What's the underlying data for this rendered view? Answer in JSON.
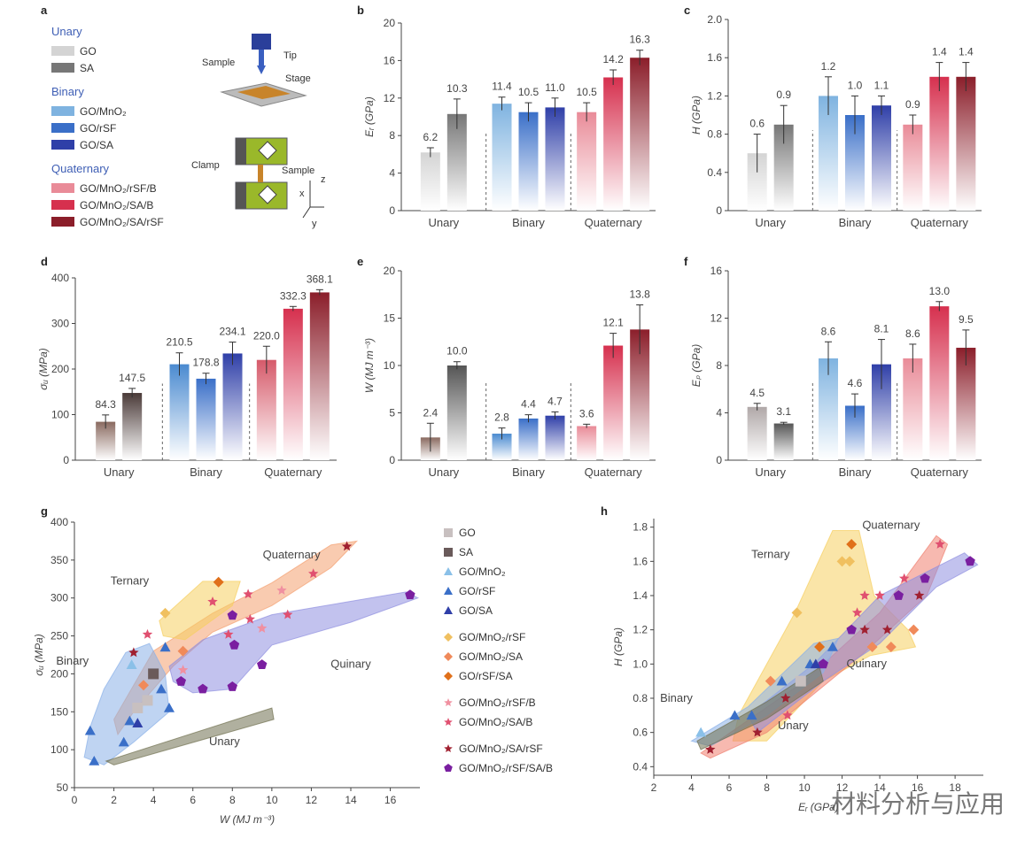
{
  "panel_labels": [
    "a",
    "b",
    "c",
    "d",
    "e",
    "f",
    "g",
    "h"
  ],
  "legend_a": {
    "groups": [
      {
        "heading": "Unary",
        "items": [
          {
            "label": "GO",
            "color": "#d4d4d4"
          },
          {
            "label": "SA",
            "color": "#777777"
          }
        ]
      },
      {
        "heading": "Binary",
        "items": [
          {
            "label": "GO/MnO₂",
            "color": "#7fb3e0"
          },
          {
            "label": "GO/rSF",
            "color": "#3a6fc8"
          },
          {
            "label": "GO/SA",
            "color": "#2f3fa8"
          }
        ]
      },
      {
        "heading": "Quaternary",
        "items": [
          {
            "label": "GO/MnO₂/rSF/B",
            "color": "#e98b98"
          },
          {
            "label": "GO/MnO₂/SA/B",
            "color": "#d6304e"
          },
          {
            "label": "GO/MnO₂/SA/rSF",
            "color": "#8b1e2a"
          }
        ]
      }
    ]
  },
  "schematic": {
    "tip": "Tip",
    "sample": "Sample",
    "stage": "Stage",
    "clamp": "Clamp",
    "sample2": "Sample",
    "axes": [
      "x",
      "y",
      "z"
    ]
  },
  "chart_data": [
    {
      "id": "b",
      "type": "bar",
      "ylabel": "Eᵣ (GPa)",
      "ylim": [
        0,
        20
      ],
      "yticks": [
        0,
        4,
        8,
        12,
        16,
        20
      ],
      "groups": [
        "Unary",
        "Binary",
        "Quaternary"
      ],
      "bars": [
        {
          "g": 0,
          "v": 6.2,
          "e": 0.5,
          "c": "#d4d4d4"
        },
        {
          "g": 0,
          "v": 10.3,
          "e": 1.6,
          "c": "#777777"
        },
        {
          "g": 1,
          "v": 11.4,
          "e": 0.7,
          "c": "#7fb3e0"
        },
        {
          "g": 1,
          "v": 10.5,
          "e": 1.0,
          "c": "#3a6fc8"
        },
        {
          "g": 1,
          "v": 11.0,
          "e": 1.0,
          "c": "#2f3fa8"
        },
        {
          "g": 2,
          "v": 10.5,
          "e": 1.0,
          "c": "#e98b98"
        },
        {
          "g": 2,
          "v": 14.2,
          "e": 0.8,
          "c": "#d6304e"
        },
        {
          "g": 2,
          "v": 16.3,
          "e": 0.8,
          "c": "#8b1e2a"
        }
      ],
      "labels": [
        "6.2",
        "10.3",
        "11.4",
        "10.5",
        "11.0",
        "10.5",
        "14.2",
        "16.3"
      ]
    },
    {
      "id": "c",
      "type": "bar",
      "ylabel": "H (GPa)",
      "ylim": [
        0,
        2.0
      ],
      "yticks": [
        0,
        0.4,
        0.8,
        1.2,
        1.6,
        2.0
      ],
      "ytick_labels": [
        "0",
        "0.4",
        "0.8",
        "1.2",
        "1.6",
        "2.0"
      ],
      "groups": [
        "Unary",
        "Binary",
        "Quaternary"
      ],
      "bars": [
        {
          "g": 0,
          "v": 0.6,
          "e": 0.2,
          "c": "#d4d4d4"
        },
        {
          "g": 0,
          "v": 0.9,
          "e": 0.2,
          "c": "#777777"
        },
        {
          "g": 1,
          "v": 1.2,
          "e": 0.2,
          "c": "#7fb3e0"
        },
        {
          "g": 1,
          "v": 1.0,
          "e": 0.2,
          "c": "#3a6fc8"
        },
        {
          "g": 1,
          "v": 1.1,
          "e": 0.1,
          "c": "#2f3fa8"
        },
        {
          "g": 2,
          "v": 0.9,
          "e": 0.1,
          "c": "#e98b98"
        },
        {
          "g": 2,
          "v": 1.4,
          "e": 0.15,
          "c": "#d6304e"
        },
        {
          "g": 2,
          "v": 1.4,
          "e": 0.15,
          "c": "#8b1e2a"
        }
      ],
      "labels": [
        "0.6",
        "0.9",
        "1.2",
        "1.0",
        "1.1",
        "0.9",
        "1.4",
        "1.4"
      ]
    },
    {
      "id": "d",
      "type": "bar",
      "ylabel": "σᵤ (MPa)",
      "ylim": [
        0,
        400
      ],
      "yticks": [
        0,
        100,
        200,
        300,
        400
      ],
      "groups": [
        "Unary",
        "Binary",
        "Quaternary"
      ],
      "bars": [
        {
          "g": 0,
          "v": 84.3,
          "e": 15,
          "c": "#8a6a60"
        },
        {
          "g": 0,
          "v": 147.5,
          "e": 10,
          "c": "#4a3a38"
        },
        {
          "g": 1,
          "v": 210.5,
          "e": 25,
          "c": "#4a8ad0"
        },
        {
          "g": 1,
          "v": 178.8,
          "e": 12,
          "c": "#3a6fc8"
        },
        {
          "g": 1,
          "v": 234.1,
          "e": 25,
          "c": "#2f3fa8"
        },
        {
          "g": 2,
          "v": 220.0,
          "e": 30,
          "c": "#d65a6a"
        },
        {
          "g": 2,
          "v": 332.3,
          "e": 5,
          "c": "#d6304e"
        },
        {
          "g": 2,
          "v": 368.1,
          "e": 6,
          "c": "#8b1e2a"
        }
      ],
      "labels": [
        "84.3",
        "147.5",
        "210.5",
        "178.8",
        "234.1",
        "220.0",
        "332.3",
        "368.1"
      ]
    },
    {
      "id": "e",
      "type": "bar",
      "ylabel": "W (MJ m⁻³)",
      "ylim": [
        0,
        20
      ],
      "yticks": [
        0,
        5,
        10,
        15,
        20
      ],
      "groups": [
        "Unary",
        "Binary",
        "Quaternary"
      ],
      "bars": [
        {
          "g": 0,
          "v": 2.4,
          "e": 1.5,
          "c": "#8a6a60"
        },
        {
          "g": 0,
          "v": 10.0,
          "e": 0.4,
          "c": "#555555"
        },
        {
          "g": 1,
          "v": 2.8,
          "e": 0.6,
          "c": "#4a8ad0"
        },
        {
          "g": 1,
          "v": 4.4,
          "e": 0.4,
          "c": "#3a6fc8"
        },
        {
          "g": 1,
          "v": 4.7,
          "e": 0.4,
          "c": "#2f3fa8"
        },
        {
          "g": 2,
          "v": 3.6,
          "e": 0.2,
          "c": "#e98b98"
        },
        {
          "g": 2,
          "v": 12.1,
          "e": 1.3,
          "c": "#d6304e"
        },
        {
          "g": 2,
          "v": 13.8,
          "e": 2.6,
          "c": "#8b1e2a"
        }
      ],
      "labels": [
        "2.4",
        "10.0",
        "2.8",
        "4.4",
        "4.7",
        "3.6",
        "12.1",
        "13.8"
      ]
    },
    {
      "id": "f",
      "type": "bar",
      "ylabel": "Eₚ (GPa)",
      "ylim": [
        0,
        16
      ],
      "yticks": [
        0,
        4,
        8,
        12,
        16
      ],
      "groups": [
        "Unary",
        "Binary",
        "Quaternary"
      ],
      "bars": [
        {
          "g": 0,
          "v": 4.5,
          "e": 0.3,
          "c": "#b0a8a8"
        },
        {
          "g": 0,
          "v": 3.1,
          "e": 0.1,
          "c": "#555555"
        },
        {
          "g": 1,
          "v": 8.6,
          "e": 1.4,
          "c": "#7fb3e0"
        },
        {
          "g": 1,
          "v": 4.6,
          "e": 1.0,
          "c": "#3a6fc8"
        },
        {
          "g": 1,
          "v": 8.1,
          "e": 2.1,
          "c": "#2f3fa8"
        },
        {
          "g": 2,
          "v": 8.6,
          "e": 1.2,
          "c": "#e98b98"
        },
        {
          "g": 2,
          "v": 13.0,
          "e": 0.4,
          "c": "#d6304e"
        },
        {
          "g": 2,
          "v": 9.5,
          "e": 1.5,
          "c": "#8b1e2a"
        }
      ],
      "labels": [
        "4.5",
        "3.1",
        "8.6",
        "4.6",
        "8.1",
        "8.6",
        "13.0",
        "9.5"
      ]
    },
    {
      "id": "g",
      "type": "scatter",
      "xlabel": "W (MJ m⁻³)",
      "ylabel": "σᵤ (MPa)",
      "xlim": [
        0,
        17.5
      ],
      "ylim": [
        50,
        400
      ],
      "xticks": [
        0,
        2,
        4,
        6,
        8,
        10,
        12,
        14,
        16
      ],
      "yticks": [
        50,
        100,
        150,
        200,
        250,
        300,
        350,
        400
      ],
      "region_labels": [
        "Quaternary",
        "Ternary",
        "Binary",
        "Quinary",
        "Unary"
      ],
      "legend": [
        {
          "label": "GO",
          "marker": "square",
          "color": "#c8c0c0"
        },
        {
          "label": "SA",
          "marker": "square",
          "color": "#6a5a5a"
        },
        {
          "label": "GO/MnO₂",
          "marker": "triangle",
          "color": "#8ac0e8"
        },
        {
          "label": "GO/rSF",
          "marker": "triangle",
          "color": "#3a6fc8"
        },
        {
          "label": "GO/SA",
          "marker": "triangle",
          "color": "#2f3fa8"
        },
        {
          "label": "GO/MnO₂/rSF",
          "marker": "diamond",
          "color": "#f0c060"
        },
        {
          "label": "GO/MnO₂/SA",
          "marker": "diamond",
          "color": "#f08a5a"
        },
        {
          "label": "GO/rSF/SA",
          "marker": "diamond",
          "color": "#e0701a"
        },
        {
          "label": "GO/MnO₂/rSF/B",
          "marker": "star",
          "color": "#f090a0"
        },
        {
          "label": "GO/MnO₂/SA/B",
          "marker": "star",
          "color": "#e05070"
        },
        {
          "label": "GO/MnO₂/SA/rSF",
          "marker": "star",
          "color": "#a02030"
        },
        {
          "label": "GO/MnO₂/rSF/SA/B",
          "marker": "pentagon",
          "color": "#7a1fa0"
        }
      ],
      "points": [
        {
          "x": 0.8,
          "y": 125,
          "m": "triangle",
          "c": "#3a6fc8"
        },
        {
          "x": 1.0,
          "y": 85,
          "m": "triangle",
          "c": "#3a6fc8"
        },
        {
          "x": 2.5,
          "y": 110,
          "m": "triangle",
          "c": "#3a6fc8"
        },
        {
          "x": 2.8,
          "y": 138,
          "m": "triangle",
          "c": "#3a6fc8"
        },
        {
          "x": 3.2,
          "y": 135,
          "m": "triangle",
          "c": "#2f3fa8"
        },
        {
          "x": 4.4,
          "y": 180,
          "m": "triangle",
          "c": "#3a6fc8"
        },
        {
          "x": 4.8,
          "y": 155,
          "m": "triangle",
          "c": "#3a6fc8"
        },
        {
          "x": 4.6,
          "y": 235,
          "m": "triangle",
          "c": "#3a6fc8"
        },
        {
          "x": 2.9,
          "y": 212,
          "m": "triangle",
          "c": "#8ac0e8"
        },
        {
          "x": 3.2,
          "y": 155,
          "m": "square",
          "c": "#c8c0c0"
        },
        {
          "x": 3.7,
          "y": 165,
          "m": "square",
          "c": "#c8c0c0"
        },
        {
          "x": 4.0,
          "y": 200,
          "m": "square",
          "c": "#6a5a5a"
        },
        {
          "x": 4.6,
          "y": 280,
          "m": "diamond",
          "c": "#f0c060"
        },
        {
          "x": 7.3,
          "y": 321,
          "m": "diamond",
          "c": "#e0701a"
        },
        {
          "x": 5.5,
          "y": 230,
          "m": "diamond",
          "c": "#f08a5a"
        },
        {
          "x": 3.5,
          "y": 185,
          "m": "diamond",
          "c": "#f08a5a"
        },
        {
          "x": 3.0,
          "y": 228,
          "m": "star",
          "c": "#a02030"
        },
        {
          "x": 3.7,
          "y": 252,
          "m": "star",
          "c": "#e05070"
        },
        {
          "x": 5.5,
          "y": 205,
          "m": "star",
          "c": "#f090a0"
        },
        {
          "x": 7.0,
          "y": 295,
          "m": "star",
          "c": "#e05070"
        },
        {
          "x": 7.8,
          "y": 252,
          "m": "star",
          "c": "#e05070"
        },
        {
          "x": 8.8,
          "y": 305,
          "m": "star",
          "c": "#e05070"
        },
        {
          "x": 8.9,
          "y": 272,
          "m": "star",
          "c": "#e05070"
        },
        {
          "x": 9.5,
          "y": 260,
          "m": "star",
          "c": "#f090a0"
        },
        {
          "x": 10.5,
          "y": 310,
          "m": "star",
          "c": "#f090a0"
        },
        {
          "x": 10.8,
          "y": 278,
          "m": "star",
          "c": "#e05070"
        },
        {
          "x": 12.1,
          "y": 332,
          "m": "star",
          "c": "#e05070"
        },
        {
          "x": 13.8,
          "y": 368,
          "m": "star",
          "c": "#a02030"
        },
        {
          "x": 5.4,
          "y": 190,
          "m": "pentagon",
          "c": "#7a1fa0"
        },
        {
          "x": 6.5,
          "y": 180,
          "m": "pentagon",
          "c": "#7a1fa0"
        },
        {
          "x": 8.0,
          "y": 183,
          "m": "pentagon",
          "c": "#7a1fa0"
        },
        {
          "x": 8.1,
          "y": 238,
          "m": "pentagon",
          "c": "#7a1fa0"
        },
        {
          "x": 8.0,
          "y": 277,
          "m": "pentagon",
          "c": "#7a1fa0"
        },
        {
          "x": 9.5,
          "y": 212,
          "m": "pentagon",
          "c": "#7a1fa0"
        },
        {
          "x": 17.0,
          "y": 304,
          "m": "pentagon",
          "c": "#7a1fa0"
        }
      ]
    },
    {
      "id": "h",
      "type": "scatter",
      "xlabel": "Eᵣ (GPa)",
      "ylabel": "H (GPa)",
      "xlim": [
        2,
        19.5
      ],
      "ylim": [
        0.35,
        1.85
      ],
      "xticks": [
        2,
        4,
        6,
        8,
        10,
        12,
        14,
        16,
        18
      ],
      "yticks": [
        0.4,
        0.6,
        0.8,
        1.0,
        1.2,
        1.4,
        1.6,
        1.8
      ],
      "ytick_labels": [
        "0.4",
        "0.6",
        "0.8",
        "1.0",
        "1.2",
        "1.4",
        "1.6",
        "1.8"
      ],
      "region_labels": [
        "Quaternary",
        "Ternary",
        "Binary",
        "Quinary",
        "Unary"
      ],
      "points": [
        {
          "x": 4.5,
          "y": 0.6,
          "m": "triangle",
          "c": "#8ac0e8"
        },
        {
          "x": 5.0,
          "y": 0.5,
          "m": "star",
          "c": "#a02030"
        },
        {
          "x": 6.3,
          "y": 0.7,
          "m": "triangle",
          "c": "#3a6fc8"
        },
        {
          "x": 7.5,
          "y": 0.6,
          "m": "star",
          "c": "#a02030"
        },
        {
          "x": 7.2,
          "y": 0.7,
          "m": "triangle",
          "c": "#3a6fc8"
        },
        {
          "x": 8.2,
          "y": 0.9,
          "m": "diamond",
          "c": "#f08a5a"
        },
        {
          "x": 8.8,
          "y": 0.9,
          "m": "triangle",
          "c": "#3a6fc8"
        },
        {
          "x": 9.0,
          "y": 0.8,
          "m": "star",
          "c": "#a02030"
        },
        {
          "x": 9.1,
          "y": 0.7,
          "m": "star",
          "c": "#e05070"
        },
        {
          "x": 9.8,
          "y": 0.9,
          "m": "square",
          "c": "#c8c0c0"
        },
        {
          "x": 10.3,
          "y": 1.0,
          "m": "triangle",
          "c": "#3a6fc8"
        },
        {
          "x": 10.6,
          "y": 1.0,
          "m": "triangle",
          "c": "#2f3fa8"
        },
        {
          "x": 9.6,
          "y": 1.3,
          "m": "diamond",
          "c": "#f0c060"
        },
        {
          "x": 10.8,
          "y": 1.1,
          "m": "diamond",
          "c": "#e0701a"
        },
        {
          "x": 11.0,
          "y": 1.0,
          "m": "pentagon",
          "c": "#7a1fa0"
        },
        {
          "x": 11.5,
          "y": 1.1,
          "m": "triangle",
          "c": "#3a6fc8"
        },
        {
          "x": 12.0,
          "y": 1.6,
          "m": "diamond",
          "c": "#f0c060"
        },
        {
          "x": 12.5,
          "y": 1.7,
          "m": "diamond",
          "c": "#e0701a"
        },
        {
          "x": 12.4,
          "y": 1.6,
          "m": "diamond",
          "c": "#f0c060"
        },
        {
          "x": 12.5,
          "y": 1.2,
          "m": "pentagon",
          "c": "#7a1fa0"
        },
        {
          "x": 12.8,
          "y": 1.3,
          "m": "star",
          "c": "#e05070"
        },
        {
          "x": 13.2,
          "y": 1.2,
          "m": "star",
          "c": "#a02030"
        },
        {
          "x": 13.2,
          "y": 1.4,
          "m": "star",
          "c": "#e05070"
        },
        {
          "x": 13.6,
          "y": 1.1,
          "m": "diamond",
          "c": "#f08a5a"
        },
        {
          "x": 14.0,
          "y": 1.4,
          "m": "star",
          "c": "#e05070"
        },
        {
          "x": 14.4,
          "y": 1.2,
          "m": "star",
          "c": "#a02030"
        },
        {
          "x": 14.6,
          "y": 1.1,
          "m": "diamond",
          "c": "#f08a5a"
        },
        {
          "x": 15.0,
          "y": 1.4,
          "m": "pentagon",
          "c": "#7a1fa0"
        },
        {
          "x": 15.3,
          "y": 1.5,
          "m": "star",
          "c": "#e05070"
        },
        {
          "x": 15.8,
          "y": 1.2,
          "m": "diamond",
          "c": "#f08a5a"
        },
        {
          "x": 16.1,
          "y": 1.4,
          "m": "star",
          "c": "#a02030"
        },
        {
          "x": 16.4,
          "y": 1.5,
          "m": "pentagon",
          "c": "#7a1fa0"
        },
        {
          "x": 17.2,
          "y": 1.7,
          "m": "star",
          "c": "#e05070"
        },
        {
          "x": 18.8,
          "y": 1.6,
          "m": "pentagon",
          "c": "#7a1fa0"
        }
      ]
    }
  ],
  "watermark": "材料分析与应用"
}
